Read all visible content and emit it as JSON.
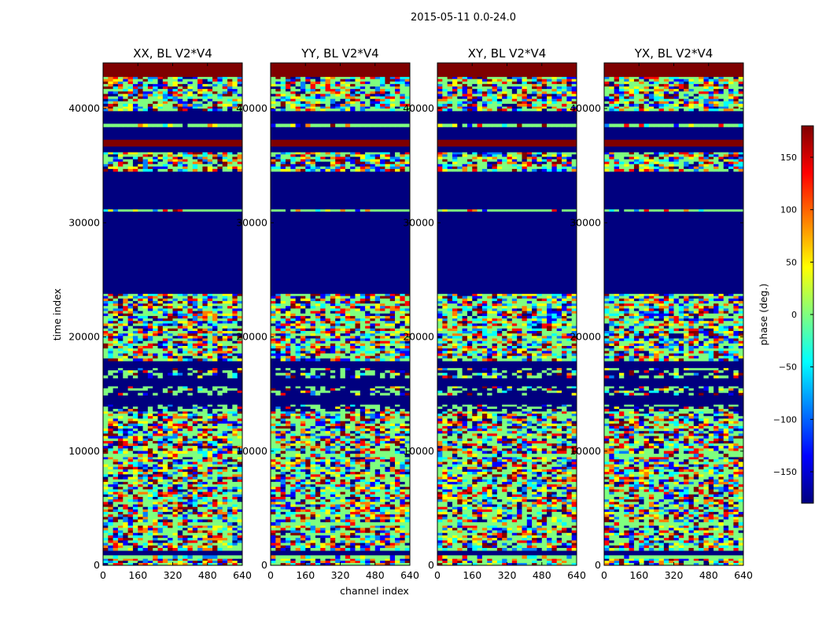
{
  "figure_title": "2015-05-11 0.0-24.0",
  "colors": {
    "low": "#00007f",
    "high": "#7f0000",
    "colormap": [
      "#00007f",
      "#0000ff",
      "#007fff",
      "#00ffff",
      "#7fff7f",
      "#ffff00",
      "#ff7f00",
      "#ff0000",
      "#7f0000"
    ]
  },
  "chart_data": {
    "type": "heatmap",
    "colormap": "jet",
    "xlabel": "channel index",
    "ylabel": "time index",
    "xlim": [
      0,
      640
    ],
    "ylim": [
      0,
      44000
    ],
    "x_ticks": [
      0,
      160,
      320,
      480,
      640
    ],
    "x_tick_labels": [
      "0",
      "160",
      "320",
      "480",
      "640"
    ],
    "y_ticks": [
      0,
      10000,
      20000,
      30000,
      40000
    ],
    "y_tick_labels": [
      "0",
      "10000",
      "20000",
      "30000",
      "40000"
    ],
    "colorbar": {
      "label": "phase (deg.)",
      "range": [
        -180,
        180
      ],
      "ticks": [
        150,
        100,
        50,
        0,
        -50,
        -100,
        -150
      ],
      "tick_labels": [
        "150",
        "100",
        "50",
        "0",
        "−50",
        "−100",
        "−150"
      ]
    },
    "panels": [
      {
        "title": "XX, BL V2*V4"
      },
      {
        "title": "YY, BL V2*V4"
      },
      {
        "title": "XY, BL V2*V4"
      },
      {
        "title": "YX, BL V2*V4"
      }
    ],
    "time_segments": [
      {
        "t0": 0,
        "t1": 600,
        "mode": "noise"
      },
      {
        "t0": 600,
        "t1": 900,
        "mode": "green"
      },
      {
        "t0": 900,
        "t1": 1300,
        "mode": "low"
      },
      {
        "t0": 1300,
        "t1": 3500,
        "mode": "noise"
      },
      {
        "t0": 3500,
        "t1": 3800,
        "mode": "green"
      },
      {
        "t0": 3800,
        "t1": 9500,
        "mode": "noise"
      },
      {
        "t0": 9500,
        "t1": 9800,
        "mode": "green"
      },
      {
        "t0": 9800,
        "t1": 13500,
        "mode": "noise"
      },
      {
        "t0": 13500,
        "t1": 14100,
        "mode": "mixed"
      },
      {
        "t0": 14100,
        "t1": 14900,
        "mode": "low"
      },
      {
        "t0": 14900,
        "t1": 15700,
        "mode": "mixed"
      },
      {
        "t0": 15700,
        "t1": 16400,
        "mode": "low"
      },
      {
        "t0": 16400,
        "t1": 17300,
        "mode": "mixed"
      },
      {
        "t0": 17300,
        "t1": 17900,
        "mode": "low"
      },
      {
        "t0": 17900,
        "t1": 23800,
        "mode": "noise"
      },
      {
        "t0": 23800,
        "t1": 31000,
        "mode": "low"
      },
      {
        "t0": 31000,
        "t1": 31200,
        "mode": "green"
      },
      {
        "t0": 31200,
        "t1": 34500,
        "mode": "low"
      },
      {
        "t0": 34500,
        "t1": 36200,
        "mode": "noise"
      },
      {
        "t0": 36200,
        "t1": 36700,
        "mode": "low"
      },
      {
        "t0": 36700,
        "t1": 37300,
        "mode": "high"
      },
      {
        "t0": 37300,
        "t1": 38400,
        "mode": "low"
      },
      {
        "t0": 38400,
        "t1": 38700,
        "mode": "green"
      },
      {
        "t0": 38700,
        "t1": 39800,
        "mode": "low"
      },
      {
        "t0": 39800,
        "t1": 40200,
        "mode": "noise"
      },
      {
        "t0": 40200,
        "t1": 42800,
        "mode": "noise"
      },
      {
        "t0": 42800,
        "t1": 44000,
        "mode": "high"
      }
    ]
  }
}
